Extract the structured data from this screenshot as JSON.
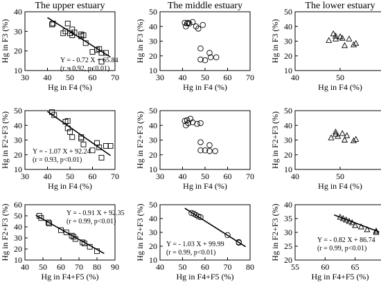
{
  "chart_data": [
    {
      "id": "r1c1",
      "type": "scatter",
      "title": "The upper estuary",
      "xlabel": "Hg in F4 (%)",
      "ylabel": "Hg in F3 (%)",
      "xlim": [
        30,
        70
      ],
      "ylim": [
        10,
        40
      ],
      "xticks": [
        30,
        40,
        50,
        60,
        70
      ],
      "yticks": [
        10,
        20,
        30,
        40
      ],
      "marker": "square",
      "points": [
        [
          42,
          33.5
        ],
        [
          42.5,
          34
        ],
        [
          47,
          29
        ],
        [
          48,
          30
        ],
        [
          49,
          34
        ],
        [
          50,
          29
        ],
        [
          51,
          31
        ],
        [
          51,
          28
        ],
        [
          52,
          29.5
        ],
        [
          55,
          28.5
        ],
        [
          55,
          27.5
        ],
        [
          56,
          28
        ],
        [
          57,
          24
        ],
        [
          60,
          19.5
        ],
        [
          62,
          20.5
        ],
        [
          63,
          21
        ],
        [
          64,
          19
        ],
        [
          64,
          14.5
        ],
        [
          66,
          19
        ]
      ],
      "fit": {
        "slope": -0.72,
        "intercept": 65.84,
        "x_range": [
          40,
          68
        ]
      },
      "equation": "Y = - 0.72 X + 65.84",
      "stats": "(r = 0.92, p<0.01)"
    },
    {
      "id": "r1c2",
      "type": "scatter",
      "title": "The middle estuary",
      "xlabel": "Hg in F4 (%)",
      "ylabel": "Hg in F3 (%)",
      "xlim": [
        30,
        70
      ],
      "ylim": [
        10,
        50
      ],
      "xticks": [
        30,
        40,
        50,
        60,
        70
      ],
      "yticks": [
        10,
        20,
        30,
        40,
        50
      ],
      "marker": "circle",
      "points": [
        [
          41,
          42.5
        ],
        [
          41.5,
          40
        ],
        [
          42,
          42
        ],
        [
          42.5,
          42.5
        ],
        [
          43,
          42
        ],
        [
          44.5,
          43
        ],
        [
          46,
          40
        ],
        [
          47,
          38.5
        ],
        [
          49,
          41
        ],
        [
          48,
          25
        ],
        [
          48,
          17.5
        ],
        [
          50,
          17
        ],
        [
          52,
          22
        ],
        [
          52.5,
          19
        ],
        [
          55,
          19
        ]
      ]
    },
    {
      "id": "r1c3",
      "type": "scatter",
      "title": "The lower estuary",
      "xlabel": "Hg in F4 (%)",
      "ylabel": "Hg in F3 (%)",
      "xlim": [
        40,
        60
      ],
      "ylim": [
        10,
        50
      ],
      "xticks": [
        40,
        50,
        60
      ],
      "yticks": [
        10,
        20,
        30,
        40,
        50
      ],
      "marker": "triangle",
      "points": [
        [
          47.5,
          30.5
        ],
        [
          48.5,
          35
        ],
        [
          49,
          33.5
        ],
        [
          49,
          31.5
        ],
        [
          50,
          33
        ],
        [
          50.5,
          32
        ],
        [
          51,
          27
        ],
        [
          52,
          31.5
        ],
        [
          53,
          27.5
        ],
        [
          53.5,
          28.5
        ]
      ]
    },
    {
      "id": "r2c1",
      "type": "scatter",
      "title": "",
      "xlabel": "Hg in F4 (%)",
      "ylabel": "Hg in F2+F3 (%)",
      "xlim": [
        30,
        70
      ],
      "ylim": [
        10,
        50
      ],
      "xticks": [
        30,
        40,
        50,
        60,
        70
      ],
      "yticks": [
        10,
        20,
        30,
        40,
        50
      ],
      "marker": "square",
      "points": [
        [
          42,
          49
        ],
        [
          43,
          47
        ],
        [
          48,
          42.5
        ],
        [
          49,
          43
        ],
        [
          49,
          38
        ],
        [
          50,
          35.5
        ],
        [
          51,
          32
        ],
        [
          55,
          32
        ],
        [
          55,
          31
        ],
        [
          56,
          27
        ],
        [
          60,
          23
        ],
        [
          62,
          28
        ],
        [
          63,
          25
        ],
        [
          64,
          18
        ],
        [
          66,
          26
        ],
        [
          68,
          26
        ]
      ],
      "fit": {
        "slope": -1.07,
        "intercept": 92.24,
        "x_range": [
          40,
          68
        ]
      },
      "equation": "Y = - 1.07 X + 92.24",
      "stats": "(r = 0.93, p<0.01)"
    },
    {
      "id": "r2c2",
      "type": "scatter",
      "title": "",
      "xlabel": "Hg in F4 (%)",
      "ylabel": "Hg in F2+F3 (%)",
      "xlim": [
        30,
        70
      ],
      "ylim": [
        10,
        50
      ],
      "xticks": [
        30,
        40,
        50,
        60,
        70
      ],
      "yticks": [
        10,
        20,
        30,
        40,
        50
      ],
      "marker": "circle",
      "points": [
        [
          41,
          43
        ],
        [
          41.5,
          40
        ],
        [
          42,
          43.5
        ],
        [
          42.5,
          41.5
        ],
        [
          43.5,
          44.5
        ],
        [
          44.5,
          42
        ],
        [
          46.5,
          41
        ],
        [
          48,
          41.5
        ],
        [
          48,
          28.5
        ],
        [
          48,
          23
        ],
        [
          50,
          23
        ],
        [
          52,
          26.5
        ],
        [
          52,
          22.5
        ],
        [
          54.5,
          22.5
        ]
      ]
    },
    {
      "id": "r2c3",
      "type": "scatter",
      "title": "",
      "xlabel": "Hg in F4 (%)",
      "ylabel": "Hg in F2+F3 (%)",
      "xlim": [
        40,
        60
      ],
      "ylim": [
        10,
        50
      ],
      "xticks": [
        40,
        50,
        60
      ],
      "yticks": [
        10,
        20,
        30,
        40,
        50
      ],
      "marker": "triangle",
      "points": [
        [
          48,
          31.5
        ],
        [
          49,
          35.5
        ],
        [
          49,
          34
        ],
        [
          49.5,
          32.5
        ],
        [
          50.5,
          34.5
        ],
        [
          51,
          30
        ],
        [
          51.5,
          33
        ],
        [
          53,
          29.5
        ],
        [
          53.5,
          30.5
        ]
      ]
    },
    {
      "id": "r3c1",
      "type": "scatter",
      "title": "",
      "xlabel": "Hg in F4+F5 (%)",
      "ylabel": "Hg in F2+F3 (%)",
      "xlim": [
        40,
        90
      ],
      "ylim": [
        10,
        60
      ],
      "xticks": [
        40,
        50,
        60,
        70,
        80,
        90
      ],
      "yticks": [
        10,
        20,
        30,
        40,
        50,
        60
      ],
      "marker": "square",
      "points": [
        [
          48,
          50
        ],
        [
          49,
          48
        ],
        [
          53,
          44
        ],
        [
          53.5,
          43
        ],
        [
          60,
          37
        ],
        [
          63,
          35
        ],
        [
          66,
          32
        ],
        [
          67,
          31
        ],
        [
          68,
          29
        ],
        [
          72,
          26
        ],
        [
          73,
          25
        ],
        [
          76,
          22
        ],
        [
          80,
          18
        ]
      ],
      "fit": {
        "slope": -0.91,
        "intercept": 92.35,
        "x_range": [
          46,
          84
        ]
      },
      "equation": "Y = - 0.91 X + 92.35",
      "stats": "(r = 0.99, p<0.01)"
    },
    {
      "id": "r3c2",
      "type": "scatter",
      "title": "",
      "xlabel": "Hg in F4+F5 (%)",
      "ylabel": "Hg in F2+F3 (%)",
      "xlim": [
        40,
        80
      ],
      "ylim": [
        10,
        50
      ],
      "xticks": [
        40,
        50,
        60,
        70,
        80
      ],
      "yticks": [
        10,
        20,
        30,
        40,
        50
      ],
      "marker": "circle",
      "points": [
        [
          54,
          44
        ],
        [
          55,
          43.5
        ],
        [
          56,
          42.5
        ],
        [
          57,
          41.5
        ],
        [
          58,
          41
        ],
        [
          70,
          28
        ],
        [
          75,
          23
        ],
        [
          75,
          22.5
        ]
      ],
      "fit": {
        "slope": -1.03,
        "intercept": 99.99,
        "x_range": [
          51,
          78
        ]
      },
      "equation": "Y = - 1.03 X + 99.99",
      "stats": "(r = 0.99, p<0.01)"
    },
    {
      "id": "r3c3",
      "type": "scatter",
      "title": "",
      "xlabel": "Hg in F4+F5 (%)",
      "ylabel": "Hg in F2+F3 (%)",
      "xlim": [
        55,
        70
      ],
      "ylim": [
        20,
        40
      ],
      "xticks": [
        55,
        60,
        65,
        70
      ],
      "yticks": [
        20,
        25,
        30,
        35,
        40
      ],
      "marker": "triangle",
      "points": [
        [
          62.5,
          35.5
        ],
        [
          63,
          35
        ],
        [
          63.5,
          34.5
        ],
        [
          64,
          34
        ],
        [
          64.5,
          33.5
        ],
        [
          65,
          32.5
        ],
        [
          66,
          32
        ],
        [
          67,
          31
        ],
        [
          68.5,
          30.5
        ],
        [
          68.5,
          30
        ]
      ],
      "fit": {
        "slope": -0.82,
        "intercept": 86.74,
        "x_range": [
          61.5,
          69
        ]
      },
      "equation": "Y = - 0.82 X + 86.74",
      "stats": "(r = 0.99, p<0.01)"
    }
  ]
}
